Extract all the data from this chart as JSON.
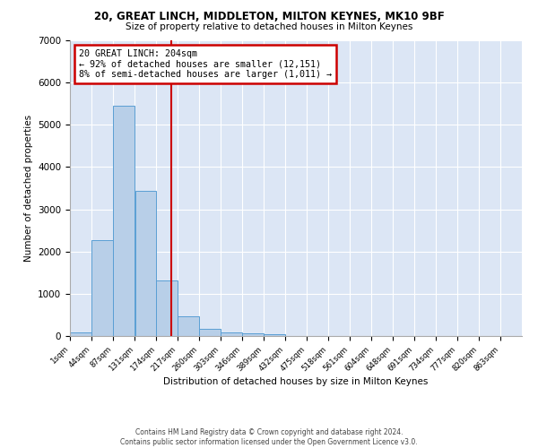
{
  "title1": "20, GREAT LINCH, MIDDLETON, MILTON KEYNES, MK10 9BF",
  "title2": "Size of property relative to detached houses in Milton Keynes",
  "xlabel": "Distribution of detached houses by size in Milton Keynes",
  "ylabel": "Number of detached properties",
  "footnote": "Contains HM Land Registry data © Crown copyright and database right 2024.\nContains public sector information licensed under the Open Government Licence v3.0.",
  "annotation_title": "20 GREAT LINCH: 204sqm",
  "annotation_line1": "← 92% of detached houses are smaller (12,151)",
  "annotation_line2": "8% of semi-detached houses are larger (1,011) →",
  "property_size": 204,
  "bar_color": "#b8cfe8",
  "bar_edge_color": "#5a9fd4",
  "vline_color": "#cc0000",
  "annotation_box_color": "#cc0000",
  "background_color": "#dce6f5",
  "categories": [
    "1sqm",
    "44sqm",
    "87sqm",
    "131sqm",
    "174sqm",
    "217sqm",
    "260sqm",
    "303sqm",
    "346sqm",
    "389sqm",
    "432sqm",
    "475sqm",
    "518sqm",
    "561sqm",
    "604sqm",
    "648sqm",
    "691sqm",
    "734sqm",
    "777sqm",
    "820sqm",
    "863sqm"
  ],
  "bar_lefts": [
    1,
    44,
    87,
    131,
    174,
    217,
    260,
    303,
    346,
    389,
    432,
    475,
    518,
    561,
    604,
    648,
    691,
    734,
    777,
    820
  ],
  "bar_heights": [
    75,
    2275,
    5460,
    3440,
    1310,
    460,
    160,
    90,
    55,
    40,
    0,
    0,
    0,
    0,
    0,
    0,
    0,
    0,
    0,
    0
  ],
  "bin_width": 43,
  "ylim": [
    0,
    7000
  ],
  "yticks": [
    0,
    1000,
    2000,
    3000,
    4000,
    5000,
    6000,
    7000
  ],
  "xlim_left": 1,
  "xlim_right": 906
}
